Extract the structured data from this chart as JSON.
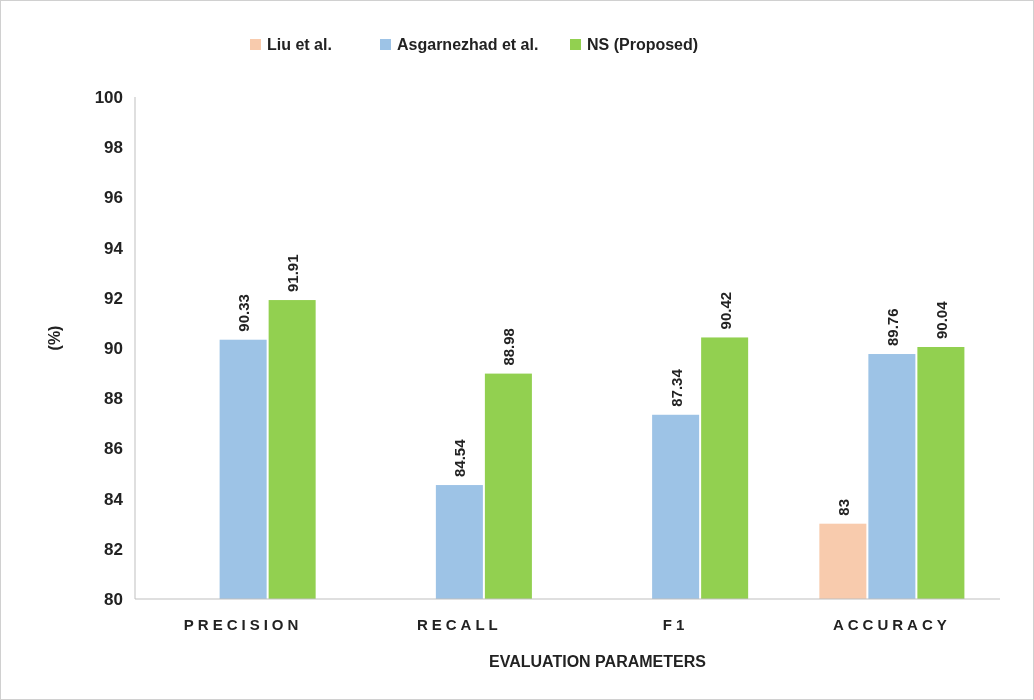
{
  "chart_data": {
    "type": "bar",
    "xlabel": "EVALUATION PARAMETERS",
    "ylabel": "(%)",
    "categories": [
      "PRECISION",
      "RECALL",
      "F1",
      "ACCURACY"
    ],
    "series": [
      {
        "name": "Liu et al.",
        "color": "#f8cbad",
        "values": [
          null,
          null,
          null,
          83
        ]
      },
      {
        "name": "Asgarnezhad et al.",
        "color": "#9dc3e6",
        "values": [
          90.33,
          84.54,
          87.34,
          89.76
        ]
      },
      {
        "name": "NS (Proposed)",
        "color": "#92d050",
        "values": [
          91.91,
          88.98,
          90.42,
          90.04
        ]
      }
    ],
    "ylim": [
      80,
      100
    ],
    "yticks": [
      80,
      82,
      84,
      86,
      88,
      90,
      92,
      94,
      96,
      98,
      100
    ],
    "grid": false,
    "legend": "top",
    "data_labels": true
  }
}
